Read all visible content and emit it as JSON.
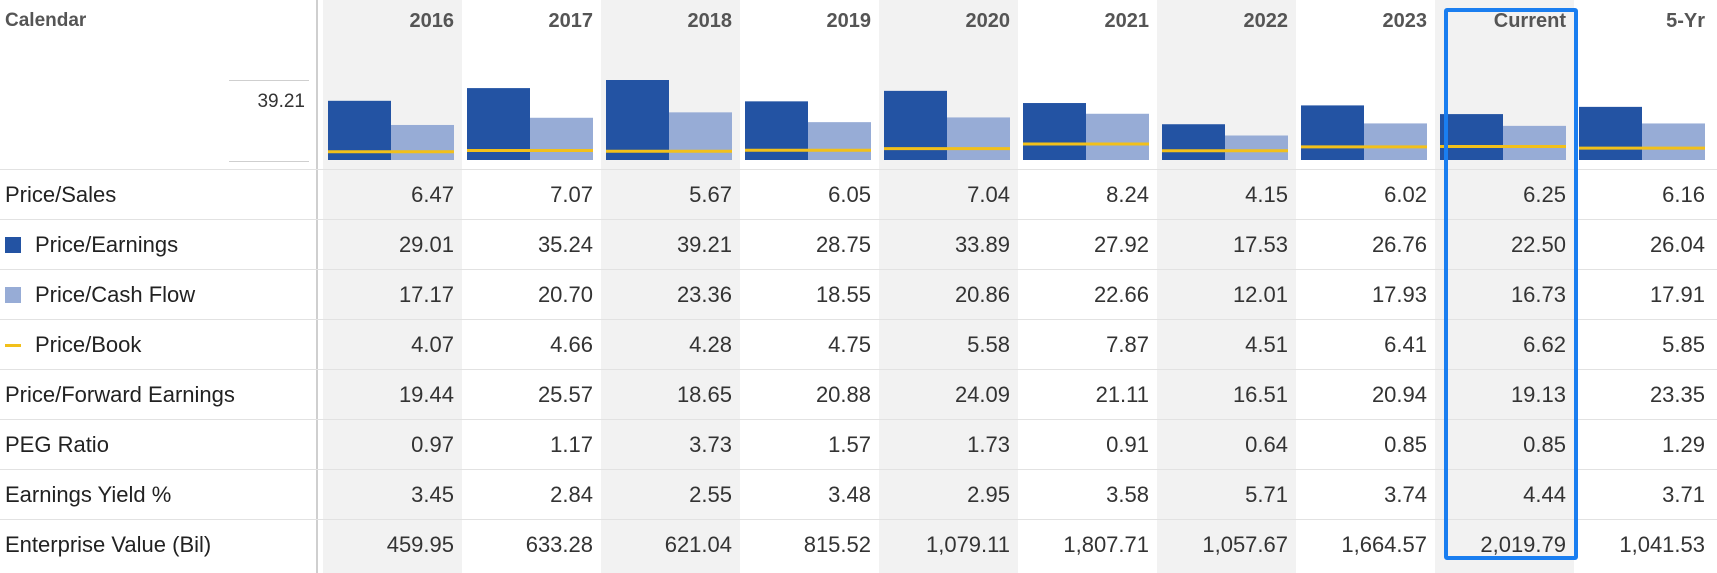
{
  "header": {
    "calendar_label": "Calendar",
    "axis_max_label": "39.21",
    "columns": [
      "2016",
      "2017",
      "2018",
      "2019",
      "2020",
      "2021",
      "2022",
      "2023",
      "Current",
      "5-Yr"
    ]
  },
  "legend_colors": {
    "price_earnings": "#2353a3",
    "price_cash_flow": "#97acd6",
    "price_book": "#f2c01a"
  },
  "rows": [
    {
      "label": "Price/Sales",
      "legend": "none",
      "values": [
        "6.47",
        "7.07",
        "5.67",
        "6.05",
        "7.04",
        "8.24",
        "4.15",
        "6.02",
        "6.25",
        "6.16"
      ]
    },
    {
      "label": "Price/Earnings",
      "legend": "square-dark",
      "values": [
        "29.01",
        "35.24",
        "39.21",
        "28.75",
        "33.89",
        "27.92",
        "17.53",
        "26.76",
        "22.50",
        "26.04"
      ]
    },
    {
      "label": "Price/Cash Flow",
      "legend": "square-light",
      "values": [
        "17.17",
        "20.70",
        "23.36",
        "18.55",
        "20.86",
        "22.66",
        "12.01",
        "17.93",
        "16.73",
        "17.91"
      ]
    },
    {
      "label": "Price/Book",
      "legend": "line-yellow",
      "values": [
        "4.07",
        "4.66",
        "4.28",
        "4.75",
        "5.58",
        "7.87",
        "4.51",
        "6.41",
        "6.62",
        "5.85"
      ]
    },
    {
      "label": "Price/Forward Earnings",
      "legend": "none",
      "values": [
        "19.44",
        "25.57",
        "18.65",
        "20.88",
        "24.09",
        "21.11",
        "16.51",
        "20.94",
        "19.13",
        "23.35"
      ]
    },
    {
      "label": "PEG Ratio",
      "legend": "none",
      "values": [
        "0.97",
        "1.17",
        "3.73",
        "1.57",
        "1.73",
        "0.91",
        "0.64",
        "0.85",
        "0.85",
        "1.29"
      ]
    },
    {
      "label": "Earnings Yield %",
      "legend": "none",
      "values": [
        "3.45",
        "2.84",
        "2.55",
        "3.48",
        "2.95",
        "3.58",
        "5.71",
        "3.74",
        "4.44",
        "3.71"
      ]
    },
    {
      "label": "Enterprise Value (Bil)",
      "legend": "none",
      "values": [
        "459.95",
        "633.28",
        "621.04",
        "815.52",
        "1,079.11",
        "1,807.71",
        "1,057.67",
        "1,664.57",
        "2,019.79",
        "1,041.53"
      ]
    }
  ],
  "chart_data": {
    "type": "bar",
    "categories": [
      "2016",
      "2017",
      "2018",
      "2019",
      "2020",
      "2021",
      "2022",
      "2023",
      "Current",
      "5-Yr"
    ],
    "ylim": [
      0,
      39.21
    ],
    "series": [
      {
        "name": "Price/Earnings",
        "kind": "bar",
        "color": "#2353a3",
        "values": [
          29.01,
          35.24,
          39.21,
          28.75,
          33.89,
          27.92,
          17.53,
          26.76,
          22.5,
          26.04
        ]
      },
      {
        "name": "Price/Cash Flow",
        "kind": "bar",
        "color": "#97acd6",
        "values": [
          17.17,
          20.7,
          23.36,
          18.55,
          20.86,
          22.66,
          12.01,
          17.93,
          16.73,
          17.91
        ]
      },
      {
        "name": "Price/Book",
        "kind": "line",
        "color": "#f2c01a",
        "values": [
          4.07,
          4.66,
          4.28,
          4.75,
          5.58,
          7.87,
          4.51,
          6.41,
          6.62,
          5.85
        ]
      }
    ]
  }
}
